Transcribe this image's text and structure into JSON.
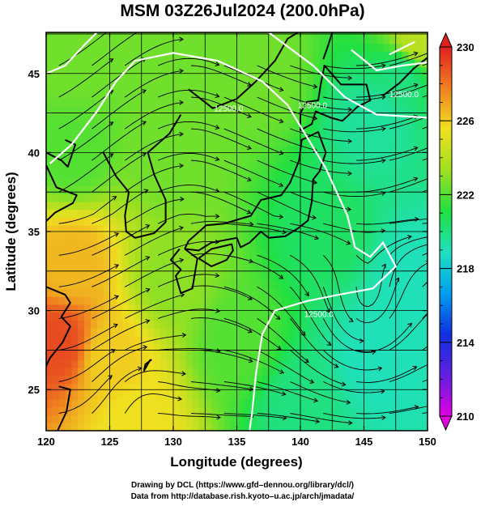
{
  "title": "MSM 03Z26Jul2024 (200.0hPa)",
  "chart_data": {
    "type": "heatmap",
    "title": "MSM 03Z26Jul2024 (200.0hPa)",
    "xlabel": "Longitude (degrees)",
    "ylabel": "Latitude  (degrees)",
    "xlim": [
      120,
      150
    ],
    "ylim": [
      22.4,
      47.6
    ],
    "xticks": [
      120,
      125,
      130,
      135,
      140,
      145,
      150
    ],
    "yticks": [
      25,
      30,
      35,
      40,
      45
    ],
    "grid": true,
    "colorbar": {
      "min": 210,
      "max": 230,
      "ticks": [
        210,
        214,
        218,
        222,
        226,
        230
      ],
      "colors": [
        "#e000e0",
        "#6020e0",
        "#1030e0",
        "#00a0f0",
        "#20e0c0",
        "#20e040",
        "#a0e020",
        "#f0e020",
        "#f08020",
        "#e02020"
      ]
    },
    "temperature_field": [
      {
        "lon": 121,
        "lat": 28,
        "value": 229
      },
      {
        "lon": 122,
        "lat": 33,
        "value": 226.5
      },
      {
        "lon": 125,
        "lat": 27,
        "value": 226
      },
      {
        "lon": 127,
        "lat": 23,
        "value": 225.5
      },
      {
        "lon": 122,
        "lat": 40,
        "value": 222
      },
      {
        "lon": 122,
        "lat": 46,
        "value": 222.5
      },
      {
        "lon": 130,
        "lat": 40,
        "value": 222.5
      },
      {
        "lon": 135,
        "lat": 28,
        "value": 222
      },
      {
        "lon": 142,
        "lat": 35,
        "value": 220.5
      },
      {
        "lon": 146,
        "lat": 42,
        "value": 219.5
      },
      {
        "lon": 148,
        "lat": 45,
        "value": 220
      },
      {
        "lon": 146,
        "lat": 27,
        "value": 219
      },
      {
        "lon": 140,
        "lat": 24,
        "value": 220
      },
      {
        "lon": 149,
        "lat": 32,
        "value": 219
      },
      {
        "lon": 130,
        "lat": 32,
        "value": 223
      },
      {
        "lon": 137,
        "lat": 45,
        "value": 222.5
      },
      {
        "lon": 149,
        "lat": 47,
        "value": 224
      }
    ],
    "contour_labels": [
      "12500.0",
      "12500.0",
      "12500.0",
      "12500.0"
    ]
  },
  "credit": {
    "line1": "Drawing by DCL (https://www.gfd–dennou.org/library/dcl/)",
    "line2": "Data from http://database.rish.kyoto–u.ac.jp/arch/jmadata/"
  }
}
